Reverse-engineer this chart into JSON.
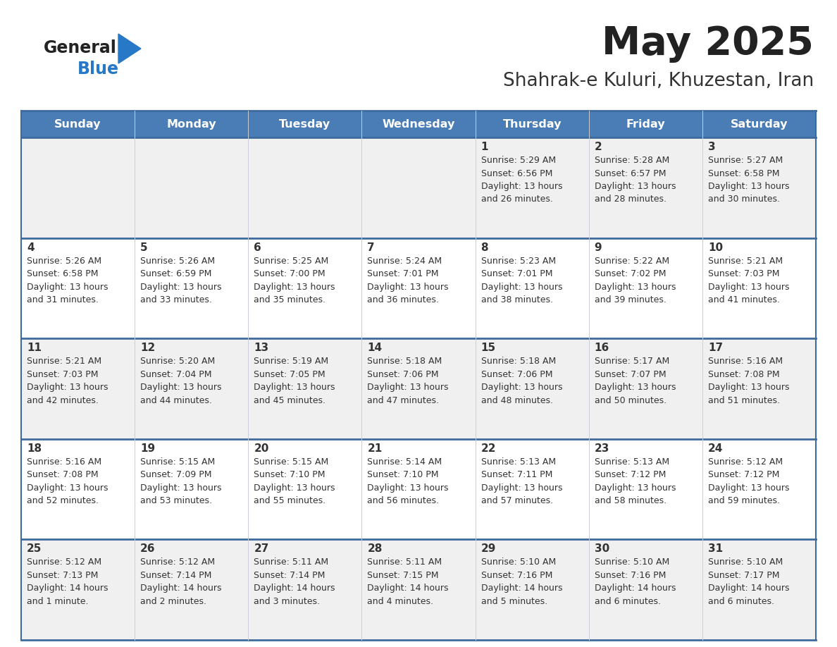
{
  "title": "May 2025",
  "subtitle": "Shahrak-e Kuluri, Khuzestan, Iran",
  "header_color": "#4a7cb5",
  "header_text_color": "#ffffff",
  "day_names": [
    "Sunday",
    "Monday",
    "Tuesday",
    "Wednesday",
    "Thursday",
    "Friday",
    "Saturday"
  ],
  "background_color": "#ffffff",
  "row_colors": [
    "#f0f0f0",
    "#ffffff",
    "#f0f0f0",
    "#ffffff",
    "#f0f0f0"
  ],
  "grid_color": "#3d6b9e",
  "separator_color": "#3d6b9e",
  "text_color": "#333333",
  "logo_black": "#222222",
  "logo_blue": "#2878c8",
  "title_color": "#222222",
  "subtitle_color": "#333333",
  "days": [
    {
      "day": 1,
      "col": 4,
      "row": 0,
      "sunrise": "5:29 AM",
      "sunset": "6:56 PM",
      "daylight": "13 hours and 26 minutes."
    },
    {
      "day": 2,
      "col": 5,
      "row": 0,
      "sunrise": "5:28 AM",
      "sunset": "6:57 PM",
      "daylight": "13 hours and 28 minutes."
    },
    {
      "day": 3,
      "col": 6,
      "row": 0,
      "sunrise": "5:27 AM",
      "sunset": "6:58 PM",
      "daylight": "13 hours and 30 minutes."
    },
    {
      "day": 4,
      "col": 0,
      "row": 1,
      "sunrise": "5:26 AM",
      "sunset": "6:58 PM",
      "daylight": "13 hours and 31 minutes."
    },
    {
      "day": 5,
      "col": 1,
      "row": 1,
      "sunrise": "5:26 AM",
      "sunset": "6:59 PM",
      "daylight": "13 hours and 33 minutes."
    },
    {
      "day": 6,
      "col": 2,
      "row": 1,
      "sunrise": "5:25 AM",
      "sunset": "7:00 PM",
      "daylight": "13 hours and 35 minutes."
    },
    {
      "day": 7,
      "col": 3,
      "row": 1,
      "sunrise": "5:24 AM",
      "sunset": "7:01 PM",
      "daylight": "13 hours and 36 minutes."
    },
    {
      "day": 8,
      "col": 4,
      "row": 1,
      "sunrise": "5:23 AM",
      "sunset": "7:01 PM",
      "daylight": "13 hours and 38 minutes."
    },
    {
      "day": 9,
      "col": 5,
      "row": 1,
      "sunrise": "5:22 AM",
      "sunset": "7:02 PM",
      "daylight": "13 hours and 39 minutes."
    },
    {
      "day": 10,
      "col": 6,
      "row": 1,
      "sunrise": "5:21 AM",
      "sunset": "7:03 PM",
      "daylight": "13 hours and 41 minutes."
    },
    {
      "day": 11,
      "col": 0,
      "row": 2,
      "sunrise": "5:21 AM",
      "sunset": "7:03 PM",
      "daylight": "13 hours and 42 minutes."
    },
    {
      "day": 12,
      "col": 1,
      "row": 2,
      "sunrise": "5:20 AM",
      "sunset": "7:04 PM",
      "daylight": "13 hours and 44 minutes."
    },
    {
      "day": 13,
      "col": 2,
      "row": 2,
      "sunrise": "5:19 AM",
      "sunset": "7:05 PM",
      "daylight": "13 hours and 45 minutes."
    },
    {
      "day": 14,
      "col": 3,
      "row": 2,
      "sunrise": "5:18 AM",
      "sunset": "7:06 PM",
      "daylight": "13 hours and 47 minutes."
    },
    {
      "day": 15,
      "col": 4,
      "row": 2,
      "sunrise": "5:18 AM",
      "sunset": "7:06 PM",
      "daylight": "13 hours and 48 minutes."
    },
    {
      "day": 16,
      "col": 5,
      "row": 2,
      "sunrise": "5:17 AM",
      "sunset": "7:07 PM",
      "daylight": "13 hours and 50 minutes."
    },
    {
      "day": 17,
      "col": 6,
      "row": 2,
      "sunrise": "5:16 AM",
      "sunset": "7:08 PM",
      "daylight": "13 hours and 51 minutes."
    },
    {
      "day": 18,
      "col": 0,
      "row": 3,
      "sunrise": "5:16 AM",
      "sunset": "7:08 PM",
      "daylight": "13 hours and 52 minutes."
    },
    {
      "day": 19,
      "col": 1,
      "row": 3,
      "sunrise": "5:15 AM",
      "sunset": "7:09 PM",
      "daylight": "13 hours and 53 minutes."
    },
    {
      "day": 20,
      "col": 2,
      "row": 3,
      "sunrise": "5:15 AM",
      "sunset": "7:10 PM",
      "daylight": "13 hours and 55 minutes."
    },
    {
      "day": 21,
      "col": 3,
      "row": 3,
      "sunrise": "5:14 AM",
      "sunset": "7:10 PM",
      "daylight": "13 hours and 56 minutes."
    },
    {
      "day": 22,
      "col": 4,
      "row": 3,
      "sunrise": "5:13 AM",
      "sunset": "7:11 PM",
      "daylight": "13 hours and 57 minutes."
    },
    {
      "day": 23,
      "col": 5,
      "row": 3,
      "sunrise": "5:13 AM",
      "sunset": "7:12 PM",
      "daylight": "13 hours and 58 minutes."
    },
    {
      "day": 24,
      "col": 6,
      "row": 3,
      "sunrise": "5:12 AM",
      "sunset": "7:12 PM",
      "daylight": "13 hours and 59 minutes."
    },
    {
      "day": 25,
      "col": 0,
      "row": 4,
      "sunrise": "5:12 AM",
      "sunset": "7:13 PM",
      "daylight": "14 hours and 1 minute."
    },
    {
      "day": 26,
      "col": 1,
      "row": 4,
      "sunrise": "5:12 AM",
      "sunset": "7:14 PM",
      "daylight": "14 hours and 2 minutes."
    },
    {
      "day": 27,
      "col": 2,
      "row": 4,
      "sunrise": "5:11 AM",
      "sunset": "7:14 PM",
      "daylight": "14 hours and 3 minutes."
    },
    {
      "day": 28,
      "col": 3,
      "row": 4,
      "sunrise": "5:11 AM",
      "sunset": "7:15 PM",
      "daylight": "14 hours and 4 minutes."
    },
    {
      "day": 29,
      "col": 4,
      "row": 4,
      "sunrise": "5:10 AM",
      "sunset": "7:16 PM",
      "daylight": "14 hours and 5 minutes."
    },
    {
      "day": 30,
      "col": 5,
      "row": 4,
      "sunrise": "5:10 AM",
      "sunset": "7:16 PM",
      "daylight": "14 hours and 6 minutes."
    },
    {
      "day": 31,
      "col": 6,
      "row": 4,
      "sunrise": "5:10 AM",
      "sunset": "7:17 PM",
      "daylight": "14 hours and 6 minutes."
    }
  ]
}
